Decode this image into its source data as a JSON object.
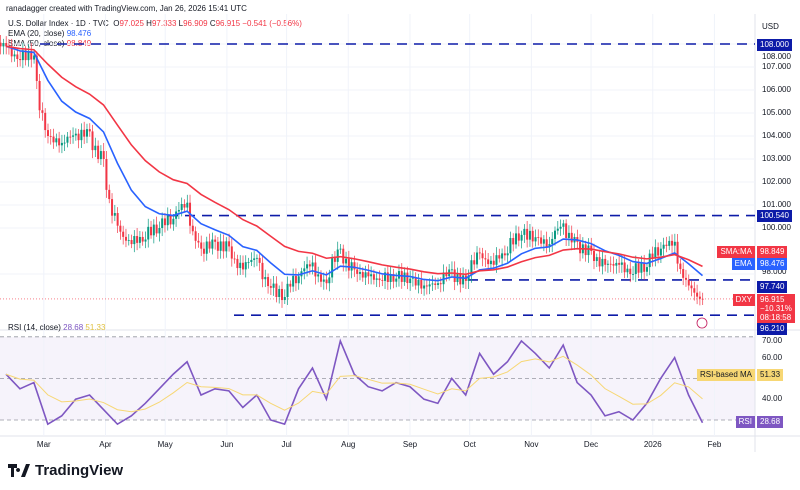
{
  "credit": "ranadagger created with TradingView.com, Jan 26, 2026 15:41 UTC",
  "symbol": {
    "name": "U.S. Dollar Index · 1D · TVC",
    "o_label": "O",
    "o": "97.025",
    "h_label": "H",
    "h": "97.333",
    "l_label": "L",
    "l": "96.909",
    "c_label": "C",
    "c": "96.915",
    "change": "−0.541 (−0.56%)"
  },
  "indicators": {
    "ema_label": "EMA (20, close)",
    "ema_value": "98.476",
    "sma_label": "SMA (50, close)",
    "sma_value": "98.849",
    "rsi_label": "RSI (14, close)",
    "rsi_value": "28.68",
    "rsi_ma_value": "51.33"
  },
  "currency": "USD",
  "price_axis": [
    "108.000",
    "107.000",
    "106.000",
    "105.000",
    "104.000",
    "103.000",
    "102.000",
    "101.000",
    "100.000",
    "98.000"
  ],
  "levels": {
    "top": "108.000",
    "upper": "100.540",
    "mid": "97.740",
    "low": "96.210"
  },
  "tags": {
    "sma_name": "SMA:MA",
    "sma": "98.849",
    "ema_name": "EMA",
    "ema": "98.476",
    "dxy_name": "DXY",
    "dxy": "96.915",
    "dxy_change": "−10.31%",
    "countdown": "08:18:58",
    "rsi_ma_name": "RSI-based MA",
    "rsi_ma": "51.33",
    "rsi_name": "RSI",
    "rsi": "28.68"
  },
  "rsi_axis": [
    "70.00",
    "60.00",
    "40.00"
  ],
  "time_axis": [
    "Mar",
    "Apr",
    "May",
    "Jun",
    "Jul",
    "Aug",
    "Sep",
    "Oct",
    "Nov",
    "Dec",
    "2026",
    "Feb"
  ],
  "logo": "TradingView",
  "colors": {
    "up": "#089981",
    "down": "#f23645",
    "ema": "#2962ff",
    "sma": "#f23645",
    "rsi": "#7e57c2",
    "rsi_ma": "#f7d774",
    "level": "#0d1ba8"
  },
  "chart_data": {
    "type": "candlestick",
    "title": "U.S. Dollar Index · 1D · TVC",
    "x": [
      "2025-02-10",
      "2025-02-17",
      "2025-02-24",
      "2025-03-03",
      "2025-03-10",
      "2025-03-17",
      "2025-03-24",
      "2025-03-31",
      "2025-04-07",
      "2025-04-14",
      "2025-04-21",
      "2025-04-28",
      "2025-05-05",
      "2025-05-12",
      "2025-05-19",
      "2025-05-26",
      "2025-06-02",
      "2025-06-09",
      "2025-06-16",
      "2025-06-23",
      "2025-06-30",
      "2025-07-07",
      "2025-07-14",
      "2025-07-21",
      "2025-07-28",
      "2025-08-04",
      "2025-08-11",
      "2025-08-18",
      "2025-08-25",
      "2025-09-01",
      "2025-09-08",
      "2025-09-15",
      "2025-09-22",
      "2025-09-29",
      "2025-10-06",
      "2025-10-13",
      "2025-10-20",
      "2025-10-27",
      "2025-11-03",
      "2025-11-10",
      "2025-11-17",
      "2025-11-24",
      "2025-12-01",
      "2025-12-08",
      "2025-12-15",
      "2025-12-22",
      "2025-12-29",
      "2026-01-05",
      "2026-01-12",
      "2026-01-19",
      "2026-01-26"
    ],
    "close": [
      107.9,
      107.3,
      107.5,
      104.0,
      103.7,
      104.1,
      104.2,
      103.0,
      100.1,
      99.3,
      99.5,
      100.0,
      100.4,
      101.1,
      99.1,
      99.4,
      99.2,
      98.2,
      98.7,
      97.4,
      97.0,
      97.9,
      98.5,
      97.6,
      99.1,
      98.2,
      97.9,
      97.7,
      97.8,
      97.8,
      97.5,
      97.6,
      98.2,
      97.7,
      98.9,
      98.4,
      98.9,
      99.7,
      99.6,
      99.3,
      100.2,
      99.4,
      99.0,
      98.4,
      98.4,
      98.0,
      98.3,
      99.1,
      99.4,
      97.5,
      96.9
    ],
    "rsi": [
      52,
      45,
      48,
      28,
      32,
      40,
      42,
      35,
      28,
      32,
      38,
      45,
      52,
      58,
      42,
      45,
      44,
      36,
      42,
      30,
      28,
      45,
      55,
      40,
      68,
      52,
      46,
      44,
      48,
      46,
      40,
      38,
      50,
      42,
      62,
      52,
      58,
      68,
      62,
      55,
      66,
      48,
      42,
      32,
      34,
      30,
      38,
      50,
      60,
      42,
      28.68
    ],
    "levels": [
      108.0,
      100.54,
      97.74,
      96.21
    ],
    "ylim": [
      95.5,
      108.6
    ],
    "rsi_ylim": [
      25,
      72
    ]
  }
}
